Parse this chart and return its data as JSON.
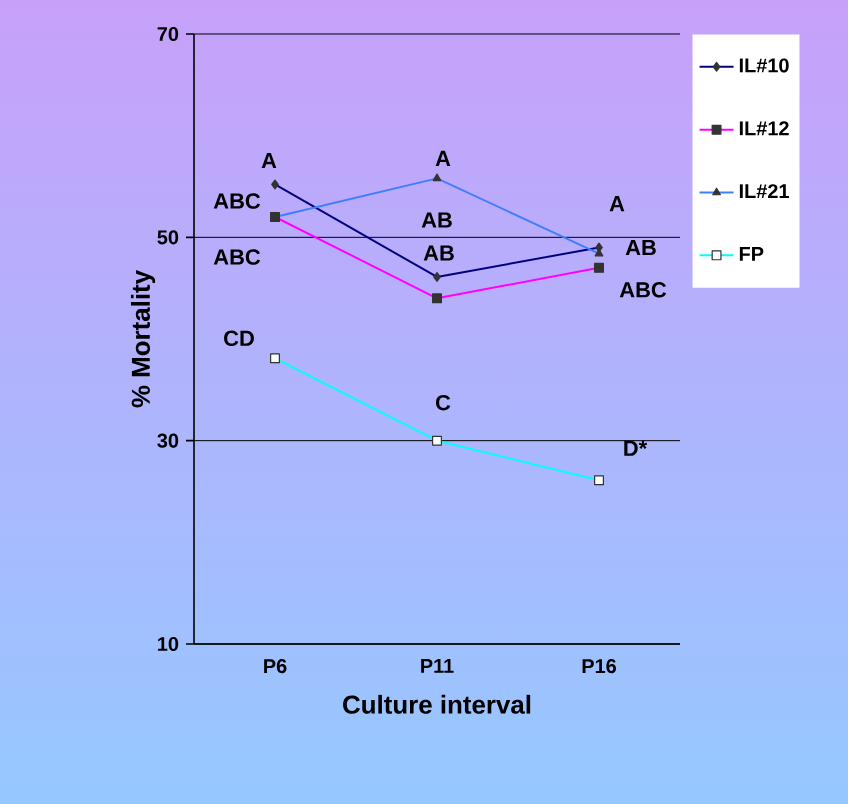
{
  "chart_data": {
    "type": "line",
    "xlabel": "Culture interval",
    "ylabel": "% Mortality",
    "categories": [
      "P6",
      "P11",
      "P16"
    ],
    "ylim": [
      10,
      70
    ],
    "yticks": [
      10,
      30,
      50,
      70
    ],
    "grid": "y",
    "legend": "right",
    "series": [
      {
        "name": "IL#10",
        "color": "#000080",
        "marker": "diamond",
        "values": [
          55.2,
          46.1,
          49.0
        ]
      },
      {
        "name": "IL#12",
        "color": "#ff00ff",
        "marker": "square",
        "values": [
          52.0,
          44.0,
          47.0
        ]
      },
      {
        "name": "IL#21",
        "color": "#3f7fff",
        "marker": "triangle",
        "values": [
          52.0,
          55.8,
          48.4
        ]
      },
      {
        "name": "FP",
        "color": "#00ffff",
        "marker": "square",
        "values": [
          38.1,
          30.0,
          26.1
        ]
      }
    ],
    "annotations": [
      {
        "text": "A",
        "x": "P6",
        "y": 55.2
      },
      {
        "text": "ABC",
        "x": "P6",
        "y": 52.0
      },
      {
        "text": "ABC",
        "x": "P6",
        "y": 52.0
      },
      {
        "text": "A",
        "x": "P11",
        "y": 55.8
      },
      {
        "text": "AB",
        "x": "P11",
        "y": 46.1
      },
      "AB",
      {
        "text": "A",
        "x": "P16",
        "y": 48.4
      },
      {
        "text": "AB",
        "x": "P16",
        "y": 49.0
      },
      {
        "text": "ABC",
        "x": "P16",
        "y": 47.0
      },
      {
        "text": "CD",
        "x": "P6",
        "y": 38.1
      },
      {
        "text": "C",
        "x": "P11",
        "y": 30.0
      },
      {
        "text": "D*",
        "x": "P16",
        "y": 26.1
      }
    ]
  }
}
